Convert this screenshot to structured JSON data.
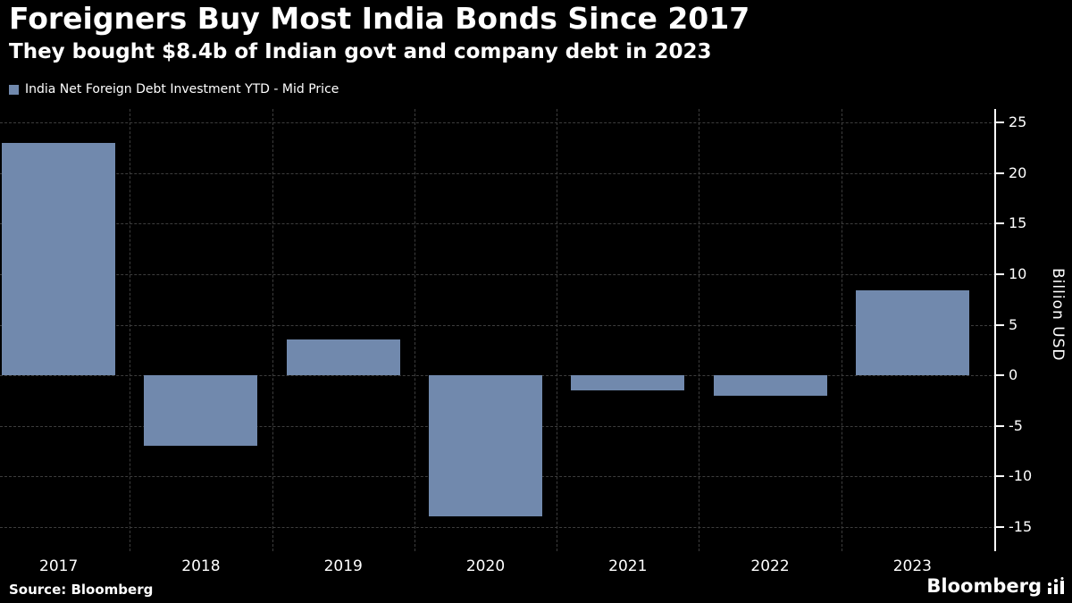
{
  "header": {
    "title": "Foreigners Buy Most India Bonds Since 2017",
    "subtitle": "They bought $8.4b of Indian govt and company debt in 2023"
  },
  "legend": {
    "label": "India Net Foreign Debt Investment YTD - Mid Price",
    "swatch_color": "#7189ad"
  },
  "chart_data": {
    "type": "bar",
    "categories": [
      "2017",
      "2018",
      "2019",
      "2020",
      "2021",
      "2022",
      "2023"
    ],
    "values": [
      23,
      -7,
      3.5,
      -13.9,
      -1.5,
      -2,
      8.4
    ],
    "title": "Foreigners Buy Most India Bonds Since 2017",
    "subtitle": "They bought $8.4b of Indian govt and company debt in 2023",
    "xlabel": "",
    "ylabel": "Billion USD",
    "ylim": [
      -15,
      25
    ],
    "yticks": [
      25,
      20,
      15,
      10,
      5,
      0,
      -5,
      -10,
      -15
    ],
    "bar_color": "#7189ad",
    "background_color": "#000000",
    "grid": "dashed",
    "legend_position": "top-left",
    "axis_side": "right"
  },
  "footer": {
    "source": "Source: Bloomberg",
    "brand": "Bloomberg"
  }
}
